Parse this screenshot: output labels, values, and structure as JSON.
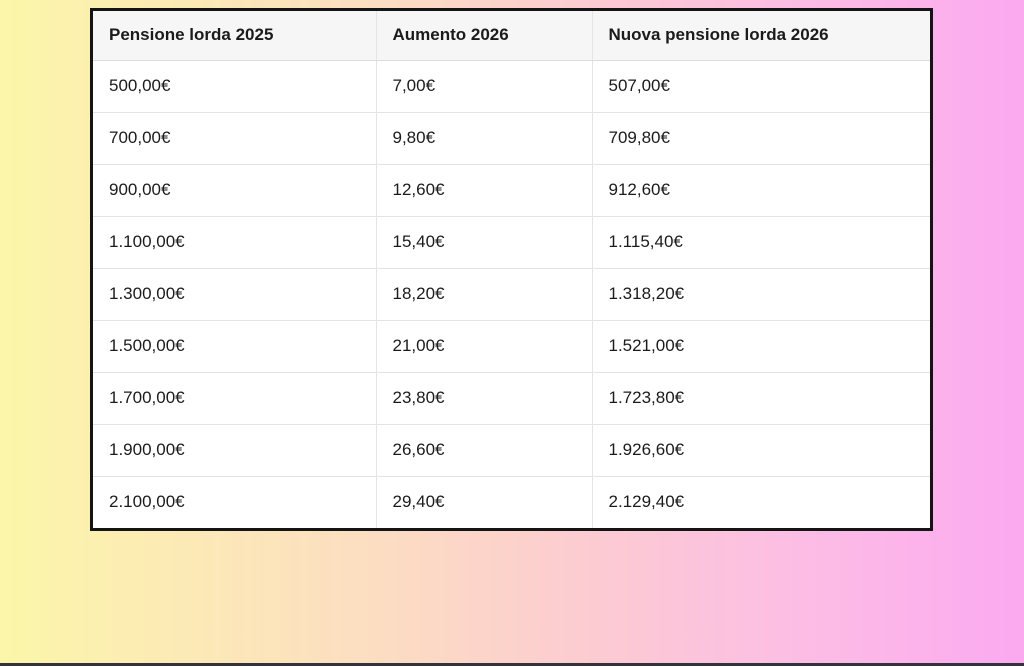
{
  "page": {
    "background": {
      "gradient_left": "#fbf6a9",
      "gradient_right": "#fba9f0",
      "bottom_bar_color": "#33333b"
    }
  },
  "table": {
    "border_color": "#141414",
    "header_bg": "#f6f6f6",
    "row_bg": "#ffffff",
    "divider_color": "#e4e4e4",
    "text_color": "#1b1b1b",
    "headers": [
      "Pensione lorda 2025",
      "Aumento 2026",
      "Nuova pensione lorda 2026"
    ],
    "rows": [
      [
        "500,00€",
        "7,00€",
        "507,00€"
      ],
      [
        "700,00€",
        "9,80€",
        "709,80€"
      ],
      [
        "900,00€",
        "12,60€",
        "912,60€"
      ],
      [
        "1.100,00€",
        "15,40€",
        "1.115,40€"
      ],
      [
        "1.300,00€",
        "18,20€",
        "1.318,20€"
      ],
      [
        "1.500,00€",
        "21,00€",
        "1.521,00€"
      ],
      [
        "1.700,00€",
        "23,80€",
        "1.723,80€"
      ],
      [
        "1.900,00€",
        "26,60€",
        "1.926,60€"
      ],
      [
        "2.100,00€",
        "29,40€",
        "2.129,40€"
      ]
    ]
  },
  "chart_data": {
    "type": "table",
    "title": "",
    "columns": [
      "Pensione lorda 2025",
      "Aumento 2026",
      "Nuova pensione lorda 2026"
    ],
    "rows": [
      [
        "500,00€",
        "7,00€",
        "507,00€"
      ],
      [
        "700,00€",
        "9,80€",
        "709,80€"
      ],
      [
        "900,00€",
        "12,60€",
        "912,60€"
      ],
      [
        "1.100,00€",
        "15,40€",
        "1.115,40€"
      ],
      [
        "1.300,00€",
        "18,20€",
        "1.318,20€"
      ],
      [
        "1.500,00€",
        "21,00€",
        "1.521,00€"
      ],
      [
        "1.700,00€",
        "23,80€",
        "1.723,80€"
      ],
      [
        "1.900,00€",
        "26,60€",
        "1.926,60€"
      ],
      [
        "2.100,00€",
        "29,40€",
        "2.129,40€"
      ]
    ],
    "layout": {
      "header_row": true,
      "outer_border": "thick black",
      "background": "yellow-to-pink horizontal gradient"
    }
  }
}
